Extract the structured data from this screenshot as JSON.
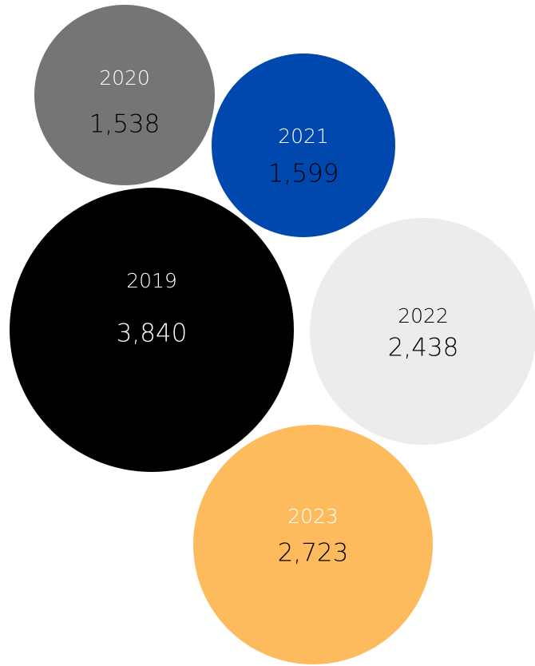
{
  "chart_data": {
    "type": "bubble",
    "title": "",
    "series": [
      {
        "label": "2020",
        "value": 1538,
        "value_label": "1,538",
        "color": "#757575",
        "year_color": "#ffffff",
        "value_color": "#000000"
      },
      {
        "label": "2021",
        "value": 1599,
        "value_label": "1,599",
        "color": "#0048ad",
        "year_color": "#ffffff",
        "value_color": "#000000"
      },
      {
        "label": "2019",
        "value": 3840,
        "value_label": "3,840",
        "color": "#000000",
        "year_color": "#ffffff",
        "value_color": "#ffffff"
      },
      {
        "label": "2022",
        "value": 2438,
        "value_label": "2,438",
        "color": "#ececec",
        "year_color": "#000000",
        "value_color": "#000000"
      },
      {
        "label": "2023",
        "value": 2723,
        "value_label": "2,723",
        "color": "#fdbb5e",
        "year_color": "#ffffff",
        "value_color": "#000000"
      }
    ]
  }
}
